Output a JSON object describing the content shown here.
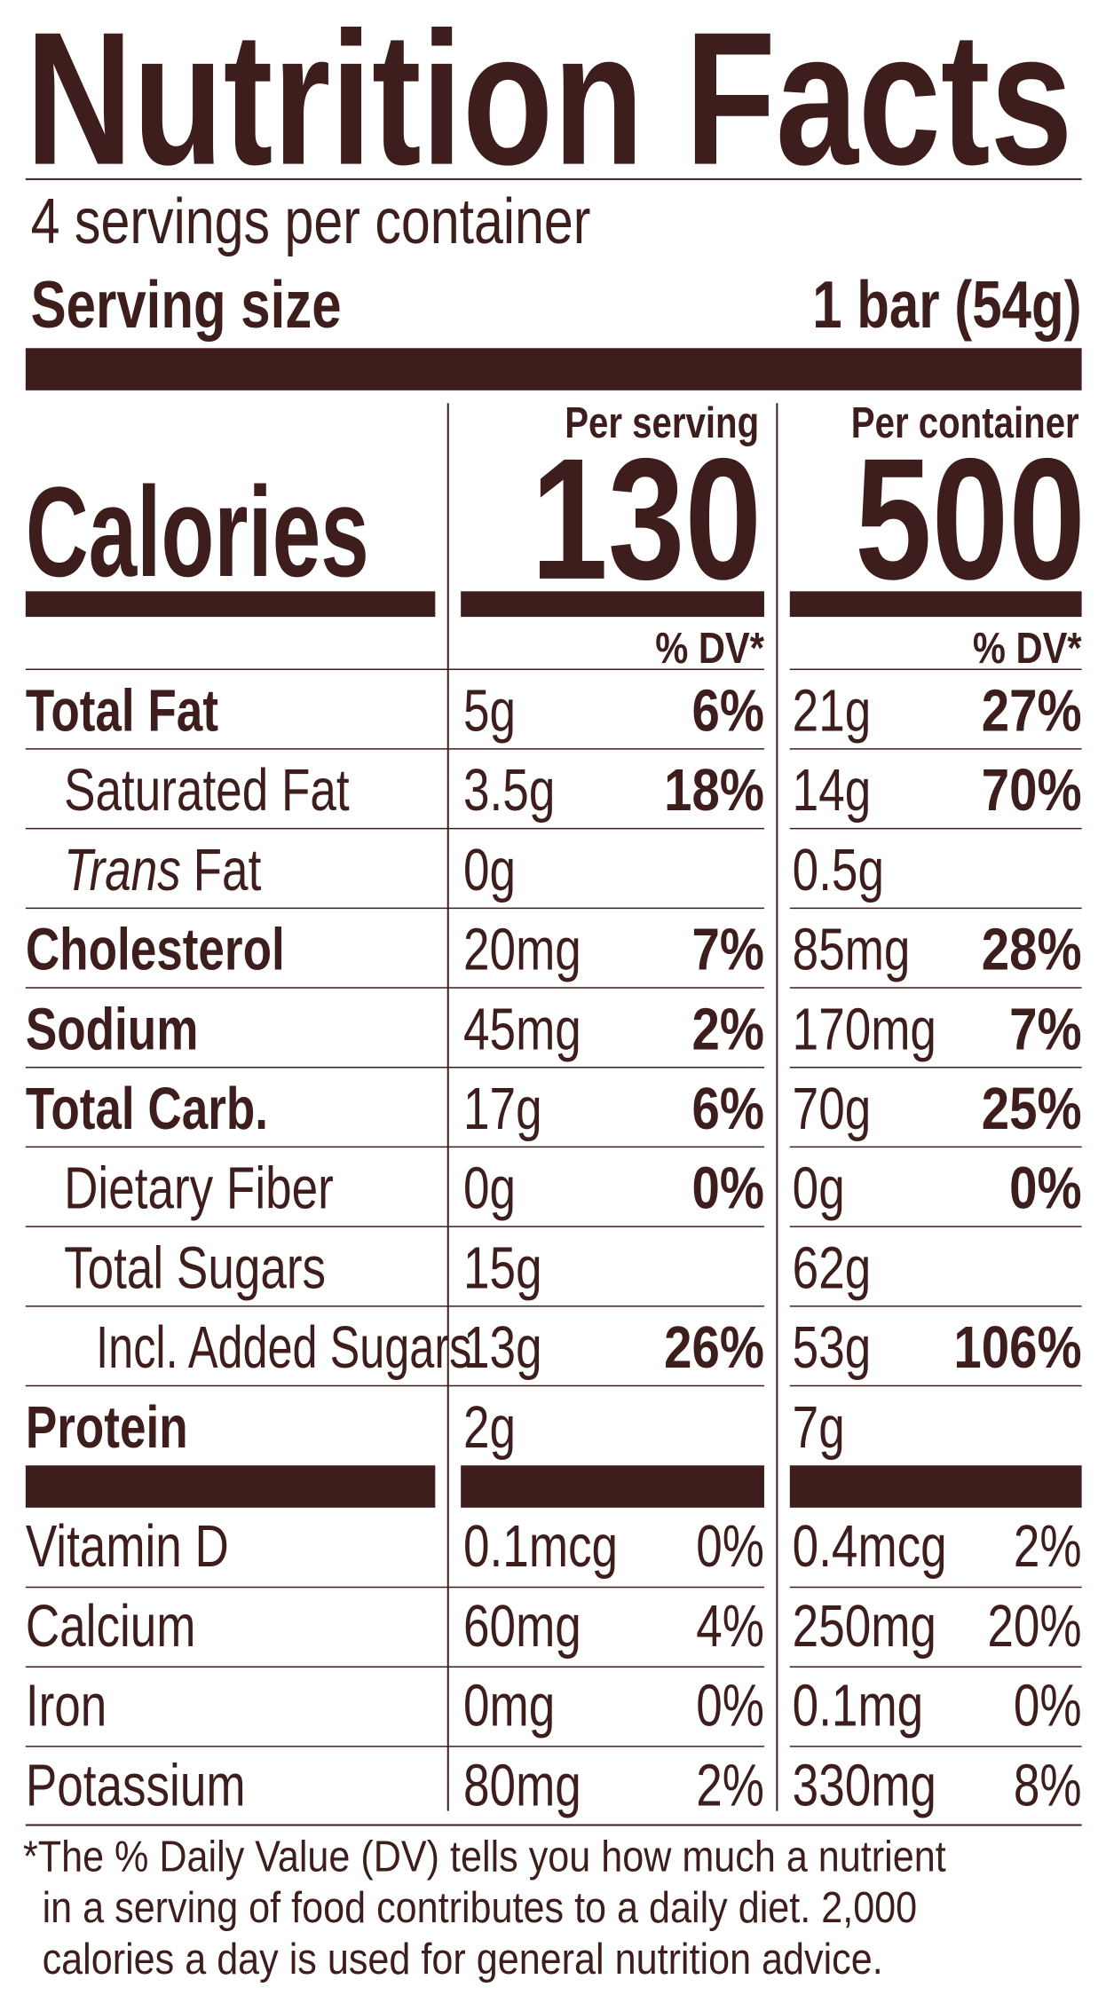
{
  "header": {
    "title": "Nutrition Facts",
    "servings": "4 servings per container",
    "serving_size_label": "Serving size",
    "serving_size_value": "1 bar (54g)"
  },
  "calories": {
    "label": "Calories"
  },
  "columns": [
    {
      "heading": "Per serving",
      "calories": 130,
      "dv_heading": "% DV*"
    },
    {
      "heading": "Per container",
      "calories": 500,
      "dv_heading": "% DV*"
    }
  ],
  "nutrients": [
    {
      "name": "Total Fat",
      "bold": true,
      "indent": 0,
      "amounts": [
        {
          "amount": "5g",
          "dv": "6%"
        },
        {
          "amount": "21g",
          "dv": "27%"
        }
      ]
    },
    {
      "name": "Saturated Fat",
      "bold": false,
      "indent": 1,
      "amounts": [
        {
          "amount": "3.5g",
          "dv": "18%"
        },
        {
          "amount": "14g",
          "dv": "70%"
        }
      ]
    },
    {
      "italic_prefix": "Trans",
      "name": "Fat",
      "bold": false,
      "indent": 1,
      "amounts": [
        {
          "amount": "0g"
        },
        {
          "amount": "0.5g"
        }
      ]
    },
    {
      "name": "Cholesterol",
      "bold": true,
      "indent": 0,
      "amounts": [
        {
          "amount": "20mg",
          "dv": "7%"
        },
        {
          "amount": "85mg",
          "dv": "28%"
        }
      ]
    },
    {
      "name": "Sodium",
      "bold": true,
      "indent": 0,
      "amounts": [
        {
          "amount": "45mg",
          "dv": "2%"
        },
        {
          "amount": "170mg",
          "dv": "7%"
        }
      ]
    },
    {
      "name": "Total Carb.",
      "bold": true,
      "indent": 0,
      "amounts": [
        {
          "amount": "17g",
          "dv": "6%"
        },
        {
          "amount": "70g",
          "dv": "25%"
        }
      ]
    },
    {
      "name": "Dietary Fiber",
      "bold": false,
      "indent": 1,
      "amounts": [
        {
          "amount": "0g",
          "dv": "0%"
        },
        {
          "amount": "0g",
          "dv": "0%"
        }
      ]
    },
    {
      "name": "Total Sugars",
      "bold": false,
      "indent": 1,
      "amounts": [
        {
          "amount": "15g"
        },
        {
          "amount": "62g"
        }
      ]
    },
    {
      "name": "Incl. Added Sugars",
      "bold": false,
      "indent": 2,
      "amounts": [
        {
          "amount": "13g",
          "dv": "26%"
        },
        {
          "amount": "53g",
          "dv": "106%"
        }
      ]
    },
    {
      "name": "Protein",
      "bold": true,
      "indent": 0,
      "amounts": [
        {
          "amount": "2g"
        },
        {
          "amount": "7g"
        }
      ]
    }
  ],
  "vitamins": [
    {
      "name": "Vitamin D",
      "amounts": [
        {
          "amount": "0.1mcg",
          "dv": "0%"
        },
        {
          "amount": "0.4mcg",
          "dv": "2%"
        }
      ]
    },
    {
      "name": "Calcium",
      "amounts": [
        {
          "amount": "60mg",
          "dv": "4%"
        },
        {
          "amount": "250mg",
          "dv": "20%"
        }
      ]
    },
    {
      "name": "Iron",
      "amounts": [
        {
          "amount": "0mg",
          "dv": "0%"
        },
        {
          "amount": "0.1mg",
          "dv": "0%"
        }
      ]
    },
    {
      "name": "Potassium",
      "amounts": [
        {
          "amount": "80mg",
          "dv": "2%"
        },
        {
          "amount": "330mg",
          "dv": "8%"
        }
      ]
    }
  ],
  "footnote": [
    "*The % Daily Value (DV) tells you how much a nutrient",
    "in a serving of food contributes to a daily diet. 2,000",
    "calories a day is used for general nutrition advice."
  ]
}
